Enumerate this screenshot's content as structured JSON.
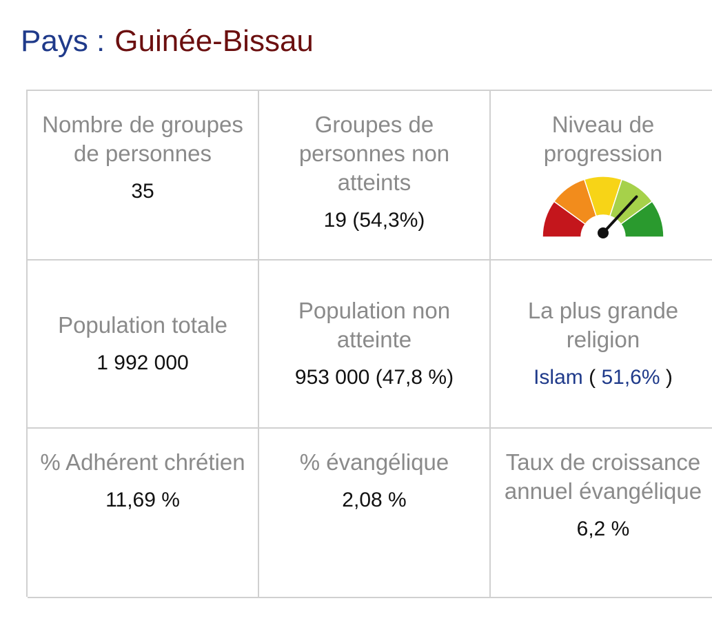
{
  "header": {
    "label": "Pays :",
    "country": "Guinée-Bissau"
  },
  "stats": {
    "people_groups": {
      "title": "Nombre de groupes de personnes",
      "value": "35"
    },
    "unreached_groups": {
      "title": "Groupes de personnes non atteints",
      "value": "19 (54,3%)"
    },
    "progress": {
      "title": "Niveau de progression",
      "gauge_icon": "progress-gauge-icon",
      "level": 0.72
    },
    "total_population": {
      "title": "Population totale",
      "value": "1 992 000"
    },
    "unreached_population": {
      "title": "Population non atteinte",
      "value": "953 000 (47,8 %)"
    },
    "largest_religion": {
      "title": "La plus grande religion",
      "name": "Islam",
      "open": "(",
      "percent": "51,6%",
      "close": ")"
    },
    "christian_adherent": {
      "title": "% Adhérent chrétien",
      "value": "11,69 %"
    },
    "evangelical": {
      "title": "% évangélique",
      "value": "2,08 %"
    },
    "evangelical_growth": {
      "title": "Taux de croissance annuel évangélique",
      "value": "6,2 %"
    }
  },
  "colors": {
    "label": "#1f3a8a",
    "country": "#6b0f0f",
    "gauge": [
      "#c4161c",
      "#f28c1c",
      "#f7d417",
      "#a6d14a",
      "#2a9a2e"
    ]
  }
}
